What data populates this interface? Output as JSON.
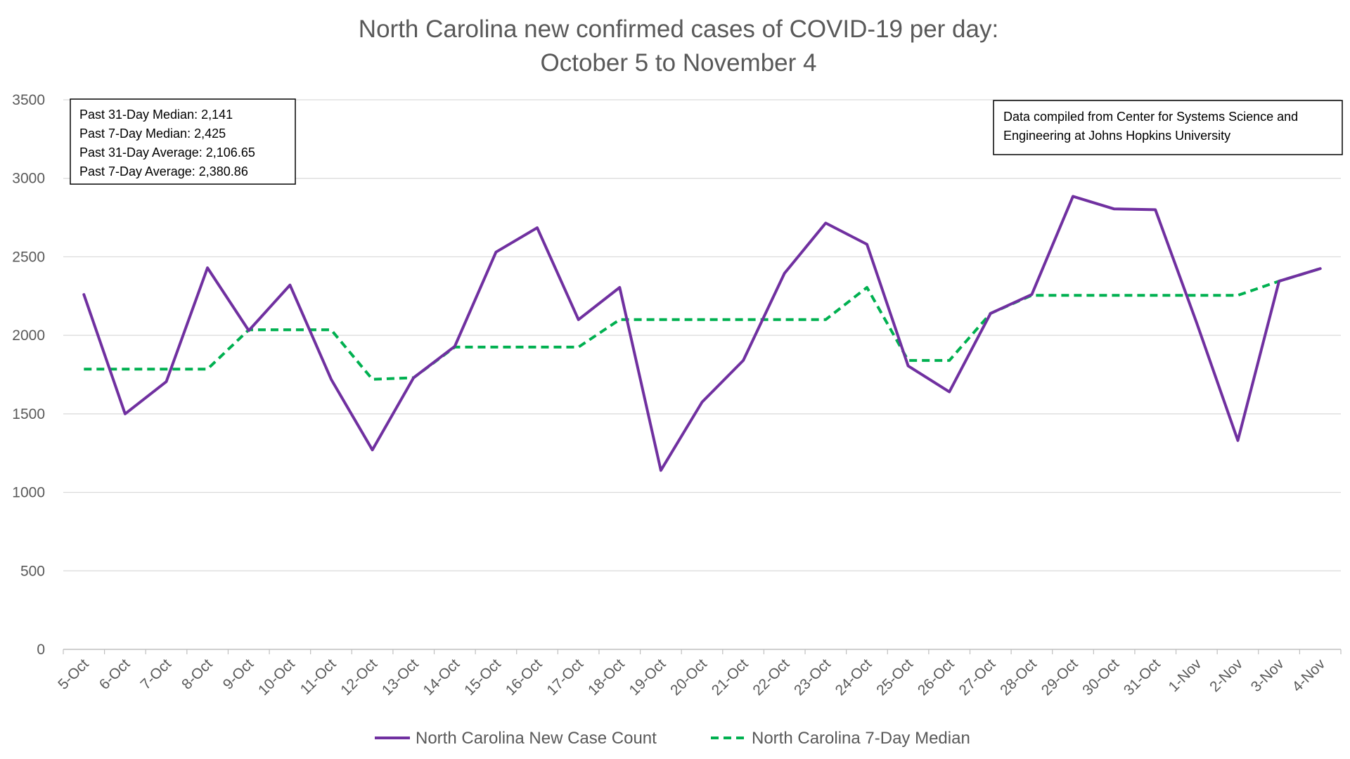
{
  "chart_data": {
    "type": "line",
    "title_lines": [
      "North Carolina new confirmed cases of COVID-19 per day:",
      "October 5 to November 4"
    ],
    "xlabel": "",
    "ylabel": "",
    "ylim": [
      0,
      3500
    ],
    "yticks": [
      "0",
      "500",
      "1000",
      "1500",
      "2000",
      "2500",
      "3000",
      "3500"
    ],
    "grid": true,
    "legend_position": "bottom",
    "categories": [
      "5-Oct",
      "6-Oct",
      "7-Oct",
      "8-Oct",
      "9-Oct",
      "10-Oct",
      "11-Oct",
      "12-Oct",
      "13-Oct",
      "14-Oct",
      "15-Oct",
      "16-Oct",
      "17-Oct",
      "18-Oct",
      "19-Oct",
      "20-Oct",
      "21-Oct",
      "22-Oct",
      "23-Oct",
      "24-Oct",
      "25-Oct",
      "26-Oct",
      "27-Oct",
      "28-Oct",
      "29-Oct",
      "30-Oct",
      "31-Oct",
      "1-Nov",
      "2-Nov",
      "3-Nov",
      "4-Nov"
    ],
    "series": [
      {
        "name": "North Carolina New Case Count",
        "color": "#7030A0",
        "style": "solid",
        "values": [
          2260,
          1500,
          1705,
          2430,
          2030,
          2320,
          1720,
          1270,
          1730,
          1930,
          2530,
          2685,
          2100,
          2305,
          1140,
          1575,
          1840,
          2395,
          2715,
          2580,
          1805,
          1640,
          2140,
          2260,
          2885,
          2805,
          2800,
          2080,
          1330,
          2345,
          2425
        ]
      },
      {
        "name": "North Carolina 7-Day Median",
        "color": "#00B050",
        "style": "dashed",
        "values": [
          1785,
          1785,
          1785,
          1785,
          2035,
          2035,
          2035,
          1720,
          1730,
          1925,
          1925,
          1925,
          1925,
          2100,
          2100,
          2100,
          2100,
          2100,
          2100,
          2305,
          1840,
          1840,
          2140,
          2255,
          2255,
          2255,
          2255,
          2255,
          2255,
          2345,
          2425
        ]
      }
    ],
    "annotations": {
      "stats_box": [
        "Past 31-Day Median: 2,141",
        "Past 7-Day Median: 2,425",
        "Past 31-Day Average: 2,106.65",
        "Past 7-Day Average: 2,380.86"
      ],
      "source_box": [
        "Data compiled from Center for Systems Science and",
        "Engineering at Johns Hopkins University"
      ]
    }
  }
}
